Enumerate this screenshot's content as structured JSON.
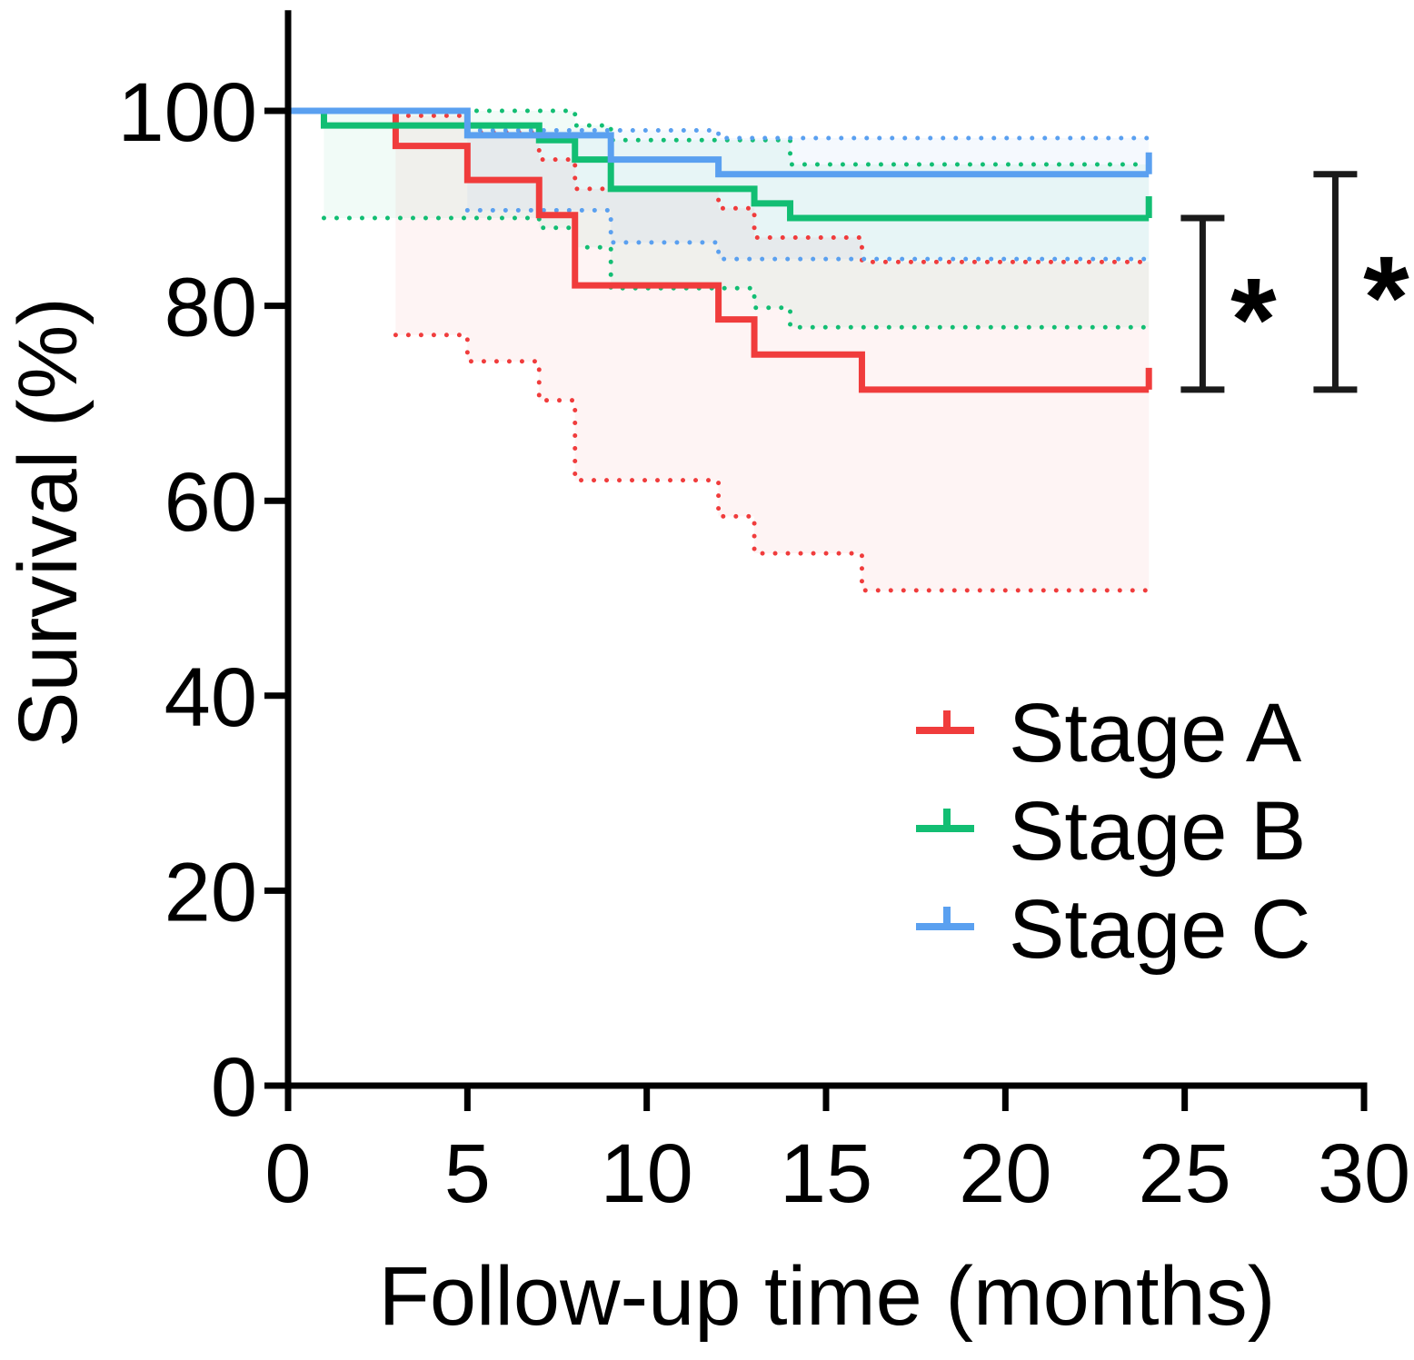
{
  "chart_data": {
    "type": "line",
    "subtype": "kaplan-meier",
    "title": "",
    "xlabel": "Follow-up time (months)",
    "ylabel": "Survival (%)",
    "xlim": [
      0,
      30
    ],
    "ylim": [
      0,
      110
    ],
    "xticks": [
      0,
      5,
      10,
      15,
      20,
      25,
      30
    ],
    "yticks": [
      0,
      20,
      40,
      60,
      80,
      100
    ],
    "xtick_labels": [
      "0",
      "5",
      "10",
      "15",
      "20",
      "25",
      "30"
    ],
    "ytick_labels": [
      "0",
      "20",
      "40",
      "60",
      "80",
      "100"
    ],
    "legend_position": "bottom-right",
    "series": [
      {
        "name": "Stage A",
        "color": "#f03c3c",
        "steps": [
          [
            0,
            100
          ],
          [
            3,
            96.4
          ],
          [
            5,
            92.9
          ],
          [
            7,
            89.3
          ],
          [
            8,
            82.1
          ],
          [
            12,
            78.6
          ],
          [
            13,
            75.0
          ],
          [
            16,
            71.4
          ],
          [
            24,
            71.4
          ]
        ],
        "ci_upper": [
          [
            3,
            99.5
          ],
          [
            5,
            97.8
          ],
          [
            7,
            95.0
          ],
          [
            8,
            92.0
          ],
          [
            12,
            90.0
          ],
          [
            13,
            87.0
          ],
          [
            16,
            84.5
          ],
          [
            24,
            84.5
          ]
        ],
        "ci_lower": [
          [
            3,
            77.0
          ],
          [
            5,
            74.3
          ],
          [
            7,
            70.3
          ],
          [
            8,
            62.1
          ],
          [
            12,
            58.4
          ],
          [
            13,
            54.6
          ],
          [
            16,
            50.8
          ],
          [
            24,
            50.8
          ]
        ]
      },
      {
        "name": "Stage B",
        "color": "#12be73",
        "steps": [
          [
            0,
            100
          ],
          [
            1,
            98.5
          ],
          [
            7,
            97.0
          ],
          [
            8,
            95.0
          ],
          [
            9,
            92.0
          ],
          [
            13,
            90.5
          ],
          [
            14,
            89.0
          ],
          [
            24,
            89.0
          ]
        ],
        "ci_upper": [
          [
            1,
            100
          ],
          [
            8,
            98.5
          ],
          [
            9,
            97.0
          ],
          [
            14,
            94.5
          ],
          [
            24,
            94.5
          ]
        ],
        "ci_lower": [
          [
            1,
            89.0
          ],
          [
            7,
            88.0
          ],
          [
            8,
            86.0
          ],
          [
            9,
            81.8
          ],
          [
            12,
            81.8
          ],
          [
            13,
            79.8
          ],
          [
            14,
            77.8
          ],
          [
            24,
            77.8
          ]
        ]
      },
      {
        "name": "Stage C",
        "color": "#5aa0f0",
        "steps": [
          [
            0,
            100
          ],
          [
            5,
            97.5
          ],
          [
            9,
            95.0
          ],
          [
            12,
            93.5
          ],
          [
            24,
            93.5
          ]
        ],
        "ci_upper": [
          [
            5,
            98.0
          ],
          [
            12,
            97.2
          ],
          [
            24,
            97.2
          ]
        ],
        "ci_lower": [
          [
            5,
            89.8
          ],
          [
            9,
            86.5
          ],
          [
            12,
            84.8
          ],
          [
            24,
            84.8
          ]
        ]
      }
    ],
    "annotations": [
      {
        "type": "significance-bracket",
        "label": "*",
        "y_range": [
          71.4,
          89.0
        ],
        "x": 25.5
      },
      {
        "type": "significance-bracket",
        "label": "*",
        "y_range": [
          71.4,
          93.5
        ],
        "x": 29.2
      }
    ]
  }
}
